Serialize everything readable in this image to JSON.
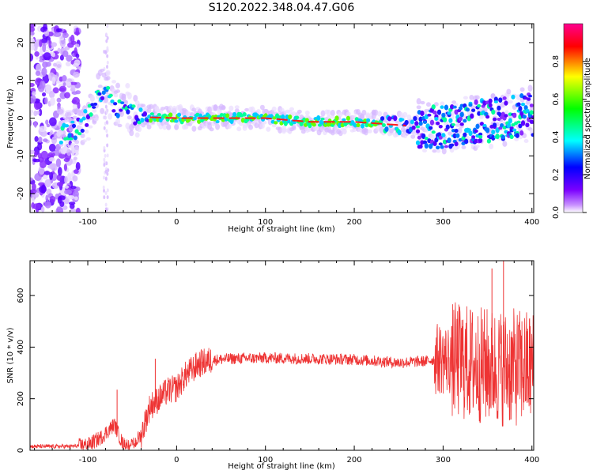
{
  "figure": {
    "title": "S120.2022.348.04.47.G06"
  },
  "chart_data": [
    {
      "type": "heatmap",
      "xlabel": "Height of straight line (km)",
      "ylabel": "Frequency (Hz)",
      "xlim": [
        -165,
        402
      ],
      "ylim": [
        -25,
        25
      ],
      "xticks": [
        -100,
        0,
        100,
        200,
        300,
        400
      ],
      "yticks": [
        -20,
        -10,
        0,
        10,
        20
      ],
      "colorbar": {
        "label": "Normalized spectral amplitude",
        "range": [
          0,
          1
        ],
        "ticks": [
          0.0,
          0.2,
          0.4,
          0.6,
          0.8
        ],
        "colormap": [
          "#ffffff",
          "#7a00ff",
          "#0000ff",
          "#00ffff",
          "#00ff00",
          "#ffff00",
          "#ff0000",
          "#ff0090"
        ]
      },
      "ridge": [
        {
          "x": -130,
          "y": -4
        },
        {
          "x": -115,
          "y": -3
        },
        {
          "x": -100,
          "y": 0
        },
        {
          "x": -90,
          "y": 5
        },
        {
          "x": -80,
          "y": 9
        },
        {
          "x": -72,
          "y": 4
        },
        {
          "x": -65,
          "y": 3
        },
        {
          "x": -55,
          "y": 3
        },
        {
          "x": -45,
          "y": 0.5
        },
        {
          "x": -30,
          "y": 0.2
        },
        {
          "x": 0,
          "y": 0
        },
        {
          "x": 50,
          "y": 0
        },
        {
          "x": 100,
          "y": 0
        },
        {
          "x": 150,
          "y": -1
        },
        {
          "x": 200,
          "y": -1
        },
        {
          "x": 230,
          "y": -1.5
        },
        {
          "x": 260,
          "y": -2
        },
        {
          "x": 300,
          "y": -2.5
        },
        {
          "x": 340,
          "y": -1
        },
        {
          "x": 370,
          "y": 0
        },
        {
          "x": 400,
          "y": 1
        }
      ]
    },
    {
      "type": "line",
      "xlabel": "Height of straight line (km)",
      "ylabel": "SNR (10 * v/v)",
      "xlim": [
        -165,
        402
      ],
      "ylim": [
        0,
        735
      ],
      "xticks": [
        -100,
        0,
        100,
        200,
        300,
        400
      ],
      "yticks": [
        0,
        200,
        400,
        600
      ],
      "series": [
        {
          "color": "#ee3333",
          "envelope": [
            {
              "x": -165,
              "y": 15
            },
            {
              "x": -120,
              "y": 15
            },
            {
              "x": -100,
              "y": 20
            },
            {
              "x": -85,
              "y": 50
            },
            {
              "x": -70,
              "y": 100
            },
            {
              "x": -60,
              "y": 20
            },
            {
              "x": -50,
              "y": 15
            },
            {
              "x": -40,
              "y": 60
            },
            {
              "x": -30,
              "y": 170
            },
            {
              "x": -20,
              "y": 200
            },
            {
              "x": -10,
              "y": 230
            },
            {
              "x": 0,
              "y": 240
            },
            {
              "x": 10,
              "y": 290
            },
            {
              "x": 25,
              "y": 335
            },
            {
              "x": 40,
              "y": 350
            },
            {
              "x": 60,
              "y": 355
            },
            {
              "x": 100,
              "y": 358
            },
            {
              "x": 150,
              "y": 355
            },
            {
              "x": 200,
              "y": 352
            },
            {
              "x": 250,
              "y": 340
            },
            {
              "x": 280,
              "y": 345
            },
            {
              "x": 295,
              "y": 355
            },
            {
              "x": 310,
              "y": 350
            },
            {
              "x": 340,
              "y": 330
            },
            {
              "x": 370,
              "y": 320
            },
            {
              "x": 402,
              "y": 320
            }
          ],
          "peaks": [
            {
              "x": -67,
              "y": 235
            },
            {
              "x": -24,
              "y": 355
            },
            {
              "x": 355,
              "y": 705
            },
            {
              "x": 368,
              "y": 735
            }
          ]
        }
      ]
    }
  ]
}
